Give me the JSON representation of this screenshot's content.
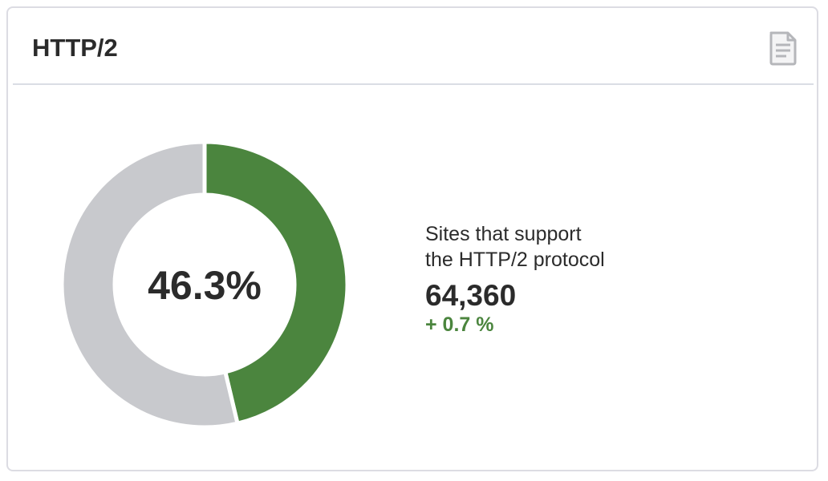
{
  "header": {
    "title": "HTTP/2",
    "doc_icon": "document-icon"
  },
  "chart_data": {
    "type": "pie",
    "variant": "donut",
    "center_label": "46.3%",
    "slices": [
      {
        "label": "",
        "value": 46.3,
        "color": "#4b853e"
      },
      {
        "label": "",
        "value": 53.7,
        "color": "#c8c9cd"
      }
    ]
  },
  "stats": {
    "description_line1": "Sites that support",
    "description_line2": "the HTTP/2 protocol",
    "value": "64,360",
    "change": "+ 0.7 %",
    "change_color": "#4b853e"
  }
}
